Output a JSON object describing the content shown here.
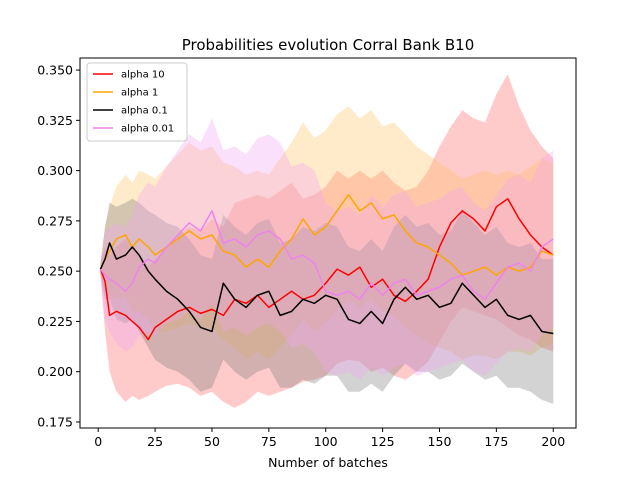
{
  "chart_data": {
    "type": "line",
    "title": "Probabilities evolution Corral Bank B10",
    "xlabel": "Number of batches",
    "ylabel": "",
    "xlim": [
      -8,
      210
    ],
    "ylim": [
      0.172,
      0.356
    ],
    "xticks": [
      0,
      25,
      50,
      75,
      100,
      125,
      150,
      175,
      200
    ],
    "yticks": [
      0.175,
      0.2,
      0.225,
      0.25,
      0.275,
      0.3,
      0.325,
      0.35
    ],
    "ytick_labels": [
      "0.175",
      "0.200",
      "0.225",
      "0.250",
      "0.275",
      "0.300",
      "0.325",
      "0.350"
    ],
    "legend_position": "upper-left",
    "series": [
      {
        "name": "alpha 10",
        "color": "#ff0000",
        "band_color": "#ff6666",
        "band_opacity": 0.35,
        "x": [
          1,
          3,
          5,
          8,
          12,
          15,
          18,
          22,
          25,
          30,
          35,
          40,
          45,
          50,
          55,
          60,
          65,
          70,
          75,
          80,
          85,
          90,
          95,
          100,
          105,
          110,
          115,
          120,
          125,
          130,
          135,
          140,
          145,
          150,
          155,
          160,
          165,
          170,
          175,
          180,
          185,
          190,
          195,
          200
        ],
        "values": [
          0.251,
          0.245,
          0.228,
          0.23,
          0.228,
          0.225,
          0.222,
          0.216,
          0.222,
          0.226,
          0.23,
          0.232,
          0.229,
          0.231,
          0.228,
          0.236,
          0.234,
          0.238,
          0.232,
          0.236,
          0.24,
          0.236,
          0.238,
          0.244,
          0.251,
          0.248,
          0.252,
          0.242,
          0.246,
          0.238,
          0.235,
          0.24,
          0.246,
          0.262,
          0.274,
          0.28,
          0.276,
          0.27,
          0.282,
          0.286,
          0.276,
          0.268,
          0.262,
          0.258
        ],
        "lower": [
          0.248,
          0.22,
          0.2,
          0.19,
          0.185,
          0.188,
          0.186,
          0.188,
          0.19,
          0.193,
          0.194,
          0.192,
          0.188,
          0.19,
          0.185,
          0.182,
          0.185,
          0.19,
          0.188,
          0.19,
          0.192,
          0.195,
          0.196,
          0.198,
          0.204,
          0.206,
          0.205,
          0.2,
          0.202,
          0.198,
          0.196,
          0.2,
          0.205,
          0.215,
          0.225,
          0.232,
          0.23,
          0.228,
          0.226,
          0.222,
          0.218,
          0.216,
          0.212,
          0.21
        ],
        "upper": [
          0.254,
          0.262,
          0.258,
          0.262,
          0.266,
          0.262,
          0.258,
          0.252,
          0.256,
          0.262,
          0.268,
          0.272,
          0.27,
          0.276,
          0.272,
          0.284,
          0.286,
          0.288,
          0.286,
          0.29,
          0.294,
          0.286,
          0.288,
          0.292,
          0.3,
          0.296,
          0.3,
          0.296,
          0.3,
          0.294,
          0.29,
          0.292,
          0.3,
          0.312,
          0.322,
          0.33,
          0.326,
          0.324,
          0.338,
          0.348,
          0.332,
          0.32,
          0.312,
          0.306
        ]
      },
      {
        "name": "alpha 1",
        "color": "#ffa500",
        "band_color": "#ffc266",
        "band_opacity": 0.35,
        "x": [
          1,
          3,
          5,
          8,
          12,
          15,
          18,
          22,
          25,
          30,
          35,
          40,
          45,
          50,
          55,
          60,
          65,
          70,
          75,
          80,
          85,
          90,
          95,
          100,
          105,
          110,
          115,
          120,
          125,
          130,
          135,
          140,
          145,
          150,
          155,
          160,
          165,
          170,
          175,
          180,
          185,
          190,
          195,
          200
        ],
        "values": [
          0.251,
          0.256,
          0.26,
          0.266,
          0.268,
          0.262,
          0.266,
          0.262,
          0.258,
          0.262,
          0.266,
          0.27,
          0.266,
          0.268,
          0.26,
          0.258,
          0.252,
          0.256,
          0.252,
          0.26,
          0.266,
          0.276,
          0.268,
          0.272,
          0.28,
          0.288,
          0.28,
          0.284,
          0.276,
          0.278,
          0.27,
          0.264,
          0.262,
          0.258,
          0.254,
          0.248,
          0.25,
          0.252,
          0.248,
          0.252,
          0.25,
          0.252,
          0.26,
          0.258
        ],
        "lower": [
          0.248,
          0.24,
          0.238,
          0.236,
          0.238,
          0.23,
          0.23,
          0.226,
          0.22,
          0.22,
          0.222,
          0.224,
          0.222,
          0.222,
          0.216,
          0.212,
          0.206,
          0.21,
          0.206,
          0.212,
          0.218,
          0.226,
          0.22,
          0.224,
          0.23,
          0.236,
          0.232,
          0.236,
          0.23,
          0.228,
          0.222,
          0.218,
          0.214,
          0.212,
          0.21,
          0.206,
          0.208,
          0.208,
          0.206,
          0.21,
          0.21,
          0.208,
          0.212,
          0.214
        ],
        "upper": [
          0.254,
          0.272,
          0.282,
          0.292,
          0.298,
          0.294,
          0.3,
          0.298,
          0.296,
          0.302,
          0.308,
          0.314,
          0.31,
          0.312,
          0.304,
          0.302,
          0.298,
          0.3,
          0.298,
          0.306,
          0.314,
          0.324,
          0.316,
          0.32,
          0.328,
          0.332,
          0.326,
          0.33,
          0.322,
          0.324,
          0.318,
          0.312,
          0.308,
          0.304,
          0.3,
          0.296,
          0.298,
          0.3,
          0.298,
          0.3,
          0.298,
          0.302,
          0.306,
          0.304
        ]
      },
      {
        "name": "alpha 0.1",
        "color": "#000000",
        "band_color": "#808080",
        "band_opacity": 0.35,
        "x": [
          1,
          3,
          5,
          8,
          12,
          15,
          18,
          22,
          25,
          30,
          35,
          40,
          45,
          50,
          55,
          60,
          65,
          70,
          75,
          80,
          85,
          90,
          95,
          100,
          105,
          110,
          115,
          120,
          125,
          130,
          135,
          140,
          145,
          150,
          155,
          160,
          165,
          170,
          175,
          180,
          185,
          190,
          195,
          200
        ],
        "values": [
          0.251,
          0.256,
          0.264,
          0.256,
          0.258,
          0.262,
          0.258,
          0.25,
          0.246,
          0.24,
          0.236,
          0.23,
          0.222,
          0.22,
          0.244,
          0.236,
          0.232,
          0.238,
          0.24,
          0.228,
          0.23,
          0.236,
          0.234,
          0.238,
          0.236,
          0.226,
          0.224,
          0.23,
          0.224,
          0.236,
          0.242,
          0.236,
          0.238,
          0.232,
          0.234,
          0.244,
          0.238,
          0.232,
          0.236,
          0.228,
          0.226,
          0.228,
          0.22,
          0.219
        ],
        "lower": [
          0.248,
          0.236,
          0.236,
          0.226,
          0.224,
          0.226,
          0.22,
          0.212,
          0.206,
          0.202,
          0.2,
          0.196,
          0.19,
          0.192,
          0.206,
          0.2,
          0.196,
          0.2,
          0.202,
          0.192,
          0.192,
          0.196,
          0.194,
          0.198,
          0.198,
          0.19,
          0.19,
          0.194,
          0.19,
          0.198,
          0.204,
          0.2,
          0.2,
          0.196,
          0.198,
          0.204,
          0.2,
          0.196,
          0.198,
          0.192,
          0.192,
          0.19,
          0.186,
          0.184
        ],
        "upper": [
          0.254,
          0.272,
          0.284,
          0.282,
          0.284,
          0.286,
          0.284,
          0.28,
          0.278,
          0.274,
          0.272,
          0.266,
          0.258,
          0.256,
          0.278,
          0.272,
          0.268,
          0.274,
          0.276,
          0.264,
          0.266,
          0.272,
          0.27,
          0.274,
          0.272,
          0.262,
          0.26,
          0.266,
          0.26,
          0.272,
          0.278,
          0.272,
          0.274,
          0.268,
          0.27,
          0.28,
          0.274,
          0.268,
          0.272,
          0.264,
          0.262,
          0.264,
          0.256,
          0.256
        ]
      },
      {
        "name": "alpha 0.01",
        "color": "#ee82ee",
        "band_color": "#f0a6f0",
        "band_opacity": 0.35,
        "x": [
          1,
          3,
          5,
          8,
          12,
          15,
          18,
          22,
          25,
          30,
          35,
          40,
          45,
          50,
          55,
          60,
          65,
          70,
          75,
          80,
          85,
          90,
          95,
          100,
          105,
          110,
          115,
          120,
          125,
          130,
          135,
          140,
          145,
          150,
          155,
          160,
          165,
          170,
          175,
          180,
          185,
          190,
          195,
          200
        ],
        "values": [
          0.251,
          0.248,
          0.246,
          0.244,
          0.24,
          0.244,
          0.252,
          0.256,
          0.254,
          0.262,
          0.268,
          0.274,
          0.27,
          0.28,
          0.264,
          0.266,
          0.262,
          0.268,
          0.27,
          0.266,
          0.256,
          0.258,
          0.254,
          0.24,
          0.238,
          0.24,
          0.236,
          0.244,
          0.238,
          0.244,
          0.246,
          0.238,
          0.24,
          0.242,
          0.246,
          0.248,
          0.24,
          0.236,
          0.244,
          0.252,
          0.254,
          0.25,
          0.262,
          0.266
        ],
        "lower": [
          0.248,
          0.226,
          0.22,
          0.214,
          0.21,
          0.212,
          0.218,
          0.22,
          0.218,
          0.224,
          0.226,
          0.23,
          0.226,
          0.234,
          0.22,
          0.222,
          0.218,
          0.222,
          0.224,
          0.22,
          0.212,
          0.214,
          0.21,
          0.2,
          0.198,
          0.2,
          0.196,
          0.202,
          0.198,
          0.202,
          0.204,
          0.198,
          0.2,
          0.202,
          0.204,
          0.206,
          0.2,
          0.198,
          0.204,
          0.21,
          0.212,
          0.21,
          0.218,
          0.222
        ],
        "upper": [
          0.254,
          0.27,
          0.272,
          0.274,
          0.272,
          0.278,
          0.288,
          0.294,
          0.292,
          0.302,
          0.31,
          0.318,
          0.314,
          0.326,
          0.31,
          0.312,
          0.308,
          0.316,
          0.318,
          0.314,
          0.302,
          0.304,
          0.3,
          0.284,
          0.28,
          0.282,
          0.278,
          0.288,
          0.282,
          0.288,
          0.29,
          0.282,
          0.284,
          0.286,
          0.29,
          0.292,
          0.284,
          0.28,
          0.288,
          0.296,
          0.298,
          0.294,
          0.306,
          0.31
        ]
      }
    ]
  }
}
